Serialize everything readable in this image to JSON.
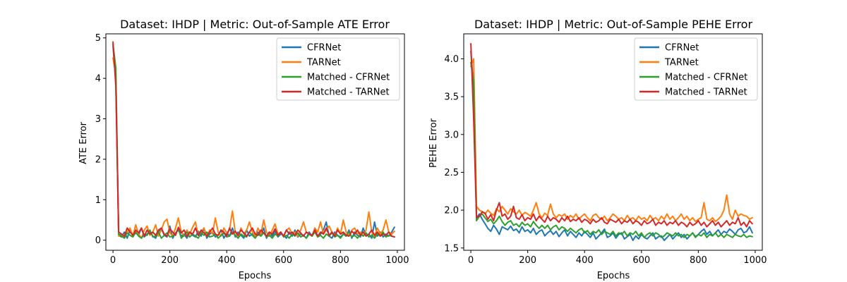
{
  "figure": {
    "background": "#ffffff"
  },
  "chart_data": [
    {
      "type": "line",
      "title": "Dataset: IHDP | Metric: Out-of-Sample ATE Error",
      "xlabel": "Epochs",
      "ylabel": "ATE Error",
      "xlim": [
        -25,
        1025
      ],
      "ylim": [
        -0.25,
        5.1
      ],
      "xticks": [
        0,
        200,
        400,
        600,
        800,
        1000
      ],
      "yticks": [
        0,
        1,
        2,
        3,
        4,
        5
      ],
      "grid": false,
      "legend": "top-right",
      "x": [
        0,
        10,
        20,
        30,
        40,
        50,
        60,
        70,
        80,
        90,
        100,
        110,
        120,
        130,
        140,
        150,
        160,
        170,
        180,
        190,
        200,
        210,
        220,
        230,
        240,
        250,
        260,
        270,
        280,
        290,
        300,
        310,
        320,
        330,
        340,
        350,
        360,
        370,
        380,
        390,
        400,
        410,
        420,
        430,
        440,
        450,
        460,
        470,
        480,
        490,
        500,
        510,
        520,
        530,
        540,
        550,
        560,
        570,
        580,
        590,
        600,
        610,
        620,
        630,
        640,
        650,
        660,
        670,
        680,
        690,
        700,
        710,
        720,
        730,
        740,
        750,
        760,
        770,
        780,
        790,
        800,
        810,
        820,
        830,
        840,
        850,
        860,
        870,
        880,
        890,
        900,
        910,
        920,
        930,
        940,
        950,
        960,
        970,
        980,
        990
      ],
      "series": [
        {
          "name": "CFRNet",
          "color": "#1f77b4",
          "values": [
            4.8,
            3.9,
            0.12,
            0.08,
            0.2,
            0.05,
            0.25,
            0.1,
            0.18,
            0.12,
            0.3,
            0.08,
            0.15,
            0.22,
            0.1,
            0.05,
            0.2,
            0.3,
            0.12,
            0.08,
            0.35,
            0.05,
            0.18,
            0.25,
            0.1,
            0.15,
            0.05,
            0.2,
            0.12,
            0.08,
            0.22,
            0.1,
            0.3,
            0.05,
            0.15,
            0.2,
            0.08,
            0.12,
            0.25,
            0.05,
            0.18,
            0.1,
            0.3,
            0.08,
            0.2,
            0.12,
            0.05,
            0.25,
            0.1,
            0.15,
            0.08,
            0.2,
            0.12,
            0.3,
            0.05,
            0.18,
            0.1,
            0.22,
            0.08,
            0.15,
            0.12,
            0.05,
            0.2,
            0.1,
            0.25,
            0.08,
            0.15,
            0.12,
            0.05,
            0.2,
            0.1,
            0.3,
            0.08,
            0.15,
            0.25,
            0.45,
            0.1,
            0.05,
            0.2,
            0.12,
            0.08,
            0.15,
            0.1,
            0.25,
            0.05,
            0.2,
            0.12,
            0.08,
            0.3,
            0.1,
            0.15,
            0.05,
            0.45,
            0.1,
            0.2,
            0.08,
            0.15,
            0.1,
            0.2,
            0.32
          ]
        },
        {
          "name": "TARNet",
          "color": "#ff7f0e",
          "values": [
            4.5,
            4.1,
            0.1,
            0.15,
            0.05,
            0.2,
            0.3,
            0.1,
            0.38,
            0.15,
            0.05,
            0.25,
            0.35,
            0.12,
            0.2,
            0.38,
            0.1,
            0.25,
            0.45,
            0.52,
            0.18,
            0.1,
            0.3,
            0.55,
            0.2,
            0.1,
            0.25,
            0.15,
            0.32,
            0.45,
            0.12,
            0.2,
            0.3,
            0.1,
            0.25,
            0.15,
            0.55,
            0.2,
            0.1,
            0.3,
            0.18,
            0.25,
            0.72,
            0.2,
            0.1,
            0.3,
            0.15,
            0.25,
            0.45,
            0.2,
            0.1,
            0.3,
            0.15,
            0.5,
            0.2,
            0.1,
            0.25,
            0.4,
            0.15,
            0.2,
            0.1,
            0.25,
            0.3,
            0.15,
            0.2,
            0.1,
            0.25,
            0.45,
            0.2,
            0.15,
            0.1,
            0.3,
            0.2,
            0.45,
            0.15,
            0.25,
            0.35,
            0.2,
            0.1,
            0.3,
            0.15,
            0.5,
            0.2,
            0.1,
            0.25,
            0.3,
            0.15,
            0.2,
            0.1,
            0.25,
            0.7,
            0.2,
            0.1,
            0.3,
            0.15,
            0.25,
            0.5,
            0.2,
            0.15,
            0.22
          ]
        },
        {
          "name": "Matched - CFRNet",
          "color": "#2ca02c",
          "values": [
            4.85,
            4.25,
            0.15,
            0.1,
            0.05,
            0.18,
            0.12,
            0.08,
            0.2,
            0.1,
            0.05,
            0.15,
            0.12,
            0.25,
            0.08,
            0.1,
            0.2,
            0.05,
            0.12,
            0.18,
            0.08,
            0.1,
            0.15,
            0.3,
            0.05,
            0.12,
            0.2,
            0.08,
            0.15,
            0.1,
            0.05,
            0.18,
            0.12,
            0.2,
            0.08,
            0.1,
            0.15,
            0.05,
            0.12,
            0.18,
            0.08,
            0.1,
            0.2,
            0.12,
            0.05,
            0.15,
            0.1,
            0.08,
            0.2,
            0.12,
            0.05,
            0.15,
            0.1,
            0.18,
            0.08,
            0.12,
            0.05,
            0.15,
            0.1,
            0.2,
            0.08,
            0.12,
            0.05,
            0.15,
            0.1,
            0.18,
            0.08,
            0.12,
            0.05,
            0.15,
            0.1,
            0.2,
            0.08,
            0.12,
            0.05,
            0.15,
            0.1,
            0.18,
            0.08,
            0.12,
            0.05,
            0.15,
            0.1,
            0.2,
            0.08,
            0.12,
            0.05,
            0.15,
            0.1,
            0.18,
            0.08,
            0.12,
            0.05,
            0.15,
            0.1,
            0.2,
            0.08,
            0.12,
            0.1,
            0.08
          ]
        },
        {
          "name": "Matched - TARNet",
          "color": "#d62728",
          "values": [
            4.9,
            3.8,
            0.2,
            0.15,
            0.1,
            0.3,
            0.2,
            0.12,
            0.25,
            0.18,
            0.3,
            0.1,
            0.25,
            0.15,
            0.2,
            0.12,
            0.25,
            0.3,
            0.15,
            0.1,
            0.28,
            0.2,
            0.12,
            0.32,
            0.18,
            0.25,
            0.1,
            0.2,
            0.15,
            0.3,
            0.12,
            0.25,
            0.18,
            0.1,
            0.2,
            0.3,
            0.15,
            0.12,
            0.25,
            0.2,
            0.1,
            0.3,
            0.15,
            0.22,
            0.12,
            0.25,
            0.18,
            0.1,
            0.2,
            0.3,
            0.15,
            0.12,
            0.25,
            0.18,
            0.1,
            0.2,
            0.15,
            0.28,
            0.12,
            0.2,
            0.1,
            0.25,
            0.15,
            0.2,
            0.12,
            0.25,
            0.18,
            0.1,
            0.2,
            0.15,
            0.12,
            0.25,
            0.1,
            0.2,
            0.15,
            0.3,
            0.12,
            0.2,
            0.1,
            0.25,
            0.15,
            0.2,
            0.12,
            0.1,
            0.22,
            0.15,
            0.25,
            0.12,
            0.2,
            0.1,
            0.15,
            0.25,
            0.12,
            0.2,
            0.1,
            0.15,
            0.12,
            0.2,
            0.1,
            0.08
          ]
        }
      ]
    },
    {
      "type": "line",
      "title": "Dataset: IHDP | Metric: Out-of-Sample PEHE Error",
      "xlabel": "Epochs",
      "ylabel": "PEHE Error",
      "xlim": [
        -25,
        1025
      ],
      "ylim": [
        1.47,
        4.33
      ],
      "xticks": [
        0,
        200,
        400,
        600,
        800,
        1000
      ],
      "yticks": [
        1.5,
        2.0,
        2.5,
        3.0,
        3.5,
        4.0
      ],
      "grid": false,
      "legend": "top-right",
      "x": [
        0,
        10,
        20,
        30,
        40,
        50,
        60,
        70,
        80,
        90,
        100,
        110,
        120,
        130,
        140,
        150,
        160,
        170,
        180,
        190,
        200,
        210,
        220,
        230,
        240,
        250,
        260,
        270,
        280,
        290,
        300,
        310,
        320,
        330,
        340,
        350,
        360,
        370,
        380,
        390,
        400,
        410,
        420,
        430,
        440,
        450,
        460,
        470,
        480,
        490,
        500,
        510,
        520,
        530,
        540,
        550,
        560,
        570,
        580,
        590,
        600,
        610,
        620,
        630,
        640,
        650,
        660,
        670,
        680,
        690,
        700,
        710,
        720,
        730,
        740,
        750,
        760,
        770,
        780,
        790,
        800,
        810,
        820,
        830,
        840,
        850,
        860,
        870,
        880,
        890,
        900,
        910,
        920,
        930,
        940,
        950,
        960,
        970,
        980,
        990
      ],
      "series": [
        {
          "name": "CFRNet",
          "color": "#1f77b4",
          "values": [
            4.1,
            3.6,
            1.9,
            1.95,
            1.88,
            1.82,
            1.76,
            1.72,
            1.8,
            1.75,
            1.68,
            1.78,
            1.76,
            1.74,
            1.79,
            1.73,
            1.75,
            1.7,
            1.78,
            1.72,
            1.74,
            1.7,
            1.76,
            1.68,
            1.72,
            1.74,
            1.66,
            1.7,
            1.73,
            1.68,
            1.72,
            1.65,
            1.7,
            1.74,
            1.66,
            1.72,
            1.68,
            1.64,
            1.7,
            1.66,
            1.72,
            1.68,
            1.64,
            1.7,
            1.62,
            1.66,
            1.7,
            1.75,
            1.64,
            1.66,
            1.7,
            1.63,
            1.68,
            1.7,
            1.62,
            1.65,
            1.68,
            1.6,
            1.66,
            1.62,
            1.68,
            1.64,
            1.62,
            1.66,
            1.7,
            1.62,
            1.65,
            1.66,
            1.6,
            1.64,
            1.68,
            1.62,
            1.66,
            1.7,
            1.64,
            1.68,
            1.62,
            1.66,
            1.7,
            1.65,
            1.68,
            1.72,
            1.75,
            1.68,
            1.72,
            1.66,
            1.7,
            1.74,
            1.68,
            1.72,
            1.7,
            1.75,
            1.72,
            1.68,
            1.74,
            1.76,
            1.7,
            1.72,
            1.78,
            1.7
          ]
        },
        {
          "name": "TARNet",
          "color": "#ff7f0e",
          "values": [
            3.9,
            4.0,
            2.05,
            2.0,
            1.98,
            1.95,
            2.0,
            1.96,
            1.93,
            2.02,
            1.98,
            2.05,
            2.0,
            1.95,
            2.02,
            1.98,
            1.95,
            2.0,
            1.93,
            1.97,
            1.95,
            1.92,
            2.0,
            2.1,
            1.95,
            1.9,
            1.96,
            1.93,
            2.08,
            1.95,
            1.9,
            1.94,
            1.92,
            1.95,
            1.88,
            1.93,
            1.9,
            1.95,
            1.88,
            1.92,
            1.95,
            1.9,
            1.86,
            1.93,
            1.95,
            1.9,
            1.88,
            1.92,
            1.86,
            1.9,
            1.95,
            1.92,
            1.88,
            1.9,
            1.86,
            1.93,
            1.88,
            1.9,
            1.86,
            1.92,
            1.88,
            1.9,
            1.86,
            1.93,
            1.88,
            1.9,
            1.86,
            1.92,
            1.88,
            1.95,
            1.88,
            1.92,
            1.86,
            1.9,
            1.95,
            1.88,
            1.92,
            1.86,
            1.9,
            1.85,
            1.88,
            1.9,
            2.1,
            1.88,
            1.86,
            1.9,
            1.85,
            1.88,
            1.92,
            2.0,
            2.2,
            1.95,
            1.88,
            2.0,
            1.92,
            1.95,
            1.93,
            1.92,
            1.88,
            1.9
          ]
        },
        {
          "name": "Matched - CFRNet",
          "color": "#2ca02c",
          "values": [
            3.95,
            3.7,
            1.86,
            1.92,
            1.95,
            1.9,
            1.85,
            1.88,
            1.82,
            1.86,
            1.92,
            1.85,
            1.8,
            1.84,
            1.86,
            1.8,
            1.82,
            1.78,
            1.84,
            1.8,
            1.82,
            1.78,
            1.85,
            1.8,
            1.76,
            1.8,
            1.76,
            1.8,
            1.74,
            1.78,
            1.8,
            1.74,
            1.78,
            1.76,
            1.72,
            1.76,
            1.73,
            1.7,
            1.74,
            1.76,
            1.7,
            1.73,
            1.68,
            1.72,
            1.7,
            1.74,
            1.68,
            1.72,
            1.7,
            1.68,
            1.72,
            1.66,
            1.7,
            1.68,
            1.72,
            1.66,
            1.7,
            1.68,
            1.72,
            1.66,
            1.7,
            1.64,
            1.68,
            1.7,
            1.66,
            1.7,
            1.68,
            1.64,
            1.66,
            1.7,
            1.68,
            1.66,
            1.7,
            1.66,
            1.68,
            1.64,
            1.68,
            1.66,
            1.7,
            1.64,
            1.68,
            1.66,
            1.7,
            1.64,
            1.68,
            1.66,
            1.7,
            1.65,
            1.68,
            1.64,
            1.68,
            1.66,
            1.64,
            1.68,
            1.66,
            1.65,
            1.68,
            1.64,
            1.66,
            1.65
          ]
        },
        {
          "name": "Matched - TARNet",
          "color": "#d62728",
          "values": [
            4.2,
            3.2,
            1.9,
            1.92,
            1.98,
            1.96,
            1.88,
            1.94,
            1.86,
            2.0,
            2.1,
            1.92,
            1.95,
            1.88,
            1.92,
            2.05,
            1.9,
            1.88,
            1.94,
            1.86,
            1.9,
            1.88,
            1.95,
            1.86,
            1.92,
            1.88,
            1.84,
            1.92,
            1.86,
            1.9,
            1.88,
            1.84,
            1.9,
            1.86,
            1.92,
            1.85,
            1.88,
            1.86,
            1.9,
            1.84,
            1.88,
            1.86,
            1.82,
            1.88,
            1.84,
            1.86,
            1.9,
            1.84,
            1.82,
            1.88,
            1.86,
            1.84,
            1.88,
            1.82,
            1.86,
            1.84,
            1.88,
            1.82,
            1.86,
            1.84,
            1.8,
            1.86,
            1.82,
            1.84,
            1.88,
            1.8,
            1.84,
            1.82,
            1.86,
            1.8,
            1.84,
            1.82,
            1.86,
            1.8,
            1.84,
            1.82,
            1.78,
            1.84,
            1.8,
            1.82,
            1.86,
            1.8,
            1.84,
            1.78,
            1.82,
            1.86,
            1.8,
            1.84,
            1.78,
            1.82,
            1.86,
            1.8,
            1.84,
            1.82,
            1.9,
            1.8,
            1.84,
            1.78,
            1.86,
            1.82
          ]
        }
      ]
    }
  ]
}
